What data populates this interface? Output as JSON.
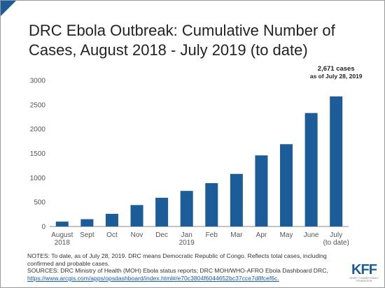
{
  "chart_data": {
    "type": "bar",
    "title": "DRC Ebola Outbreak: Cumulative Number of Cases, August 2018 - July 2019 (to date)",
    "categories": [
      "August\n2018",
      "Sept",
      "Oct",
      "Nov",
      "Dec",
      "Jan\n2019",
      "Feb",
      "Mar",
      "Apr",
      "May",
      "June",
      "July\n(to date)"
    ],
    "values": [
      100,
      150,
      260,
      440,
      590,
      730,
      890,
      1080,
      1460,
      1690,
      2330,
      2671
    ],
    "color": "#1b5c99",
    "ylim": [
      0,
      3000
    ],
    "yticks": [
      0,
      500,
      1000,
      1500,
      2000,
      2500,
      3000
    ],
    "grid": false,
    "annotation": {
      "label": "2,671 cases",
      "note": "as of July 28, 2019"
    }
  },
  "notes": "NOTES: To date, as of July 28, 2019. DRC means Democratic Republic of Congo. Reflects total cases, including confirmed and probable cases.",
  "sources": "SOURCES: DRC Ministry of Health (MOH) Ebola status reports; DRC MOH/WHO-AFRO Ebola Dashboard DRC,",
  "link": "https://www.arcgis.com/apps/opsdashboard/index.html#/e70c3804f6044652bc37cce7d8fcef6c.",
  "logo": {
    "name": "KFF",
    "subtitle": "HENRY J KAISER FAMILY FOUNDATION"
  }
}
